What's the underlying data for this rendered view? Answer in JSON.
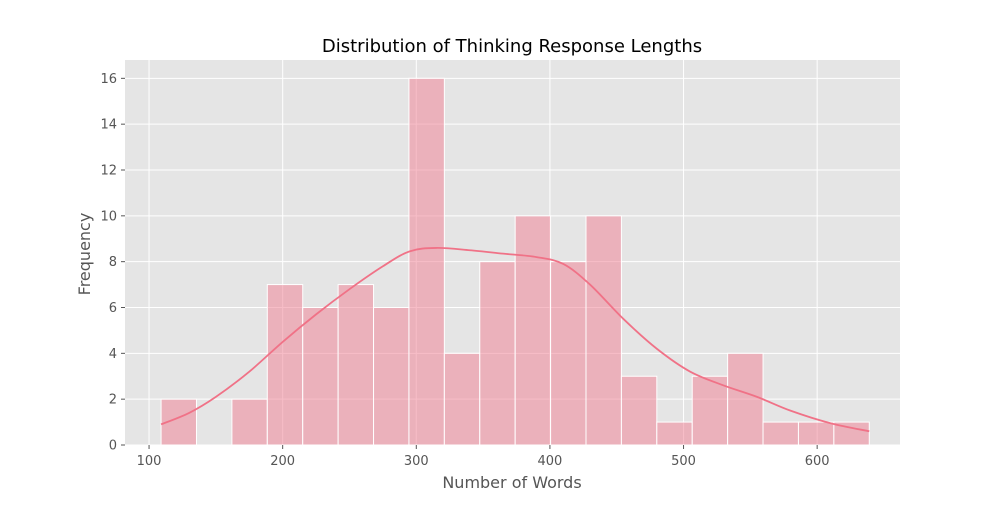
{
  "chart_data": {
    "type": "bar",
    "subtype": "histogram with kde",
    "title": "Distribution of Thinking Response Lengths",
    "xlabel": "Number of Words",
    "ylabel": "Frequency",
    "xlim": [
      82,
      662
    ],
    "ylim": [
      0,
      16.8
    ],
    "x_ticks": [
      100,
      200,
      300,
      400,
      500,
      600
    ],
    "y_ticks": [
      0,
      2,
      4,
      6,
      8,
      10,
      12,
      14,
      16
    ],
    "grid": true,
    "background": "#E5E5E5",
    "bar_color": "#F08799",
    "bar_opacity": 0.55,
    "kde_color": "#F07287",
    "bins": [
      {
        "x0": 109.0,
        "x1": 135.5,
        "count": 2
      },
      {
        "x0": 135.5,
        "x1": 162.0,
        "count": 0
      },
      {
        "x0": 162.0,
        "x1": 188.5,
        "count": 2
      },
      {
        "x0": 188.5,
        "x1": 215.0,
        "count": 7
      },
      {
        "x0": 215.0,
        "x1": 241.5,
        "count": 6
      },
      {
        "x0": 241.5,
        "x1": 268.0,
        "count": 7
      },
      {
        "x0": 268.0,
        "x1": 294.5,
        "count": 6
      },
      {
        "x0": 294.5,
        "x1": 321.0,
        "count": 16
      },
      {
        "x0": 321.0,
        "x1": 347.5,
        "count": 4
      },
      {
        "x0": 347.5,
        "x1": 374.0,
        "count": 8
      },
      {
        "x0": 374.0,
        "x1": 400.5,
        "count": 10
      },
      {
        "x0": 400.5,
        "x1": 427.0,
        "count": 8
      },
      {
        "x0": 427.0,
        "x1": 453.5,
        "count": 10
      },
      {
        "x0": 453.5,
        "x1": 480.0,
        "count": 3
      },
      {
        "x0": 480.0,
        "x1": 506.5,
        "count": 1
      },
      {
        "x0": 506.5,
        "x1": 533.0,
        "count": 3
      },
      {
        "x0": 533.0,
        "x1": 559.5,
        "count": 4
      },
      {
        "x0": 559.5,
        "x1": 586.0,
        "count": 1
      },
      {
        "x0": 586.0,
        "x1": 612.5,
        "count": 1
      },
      {
        "x0": 612.5,
        "x1": 639.0,
        "count": 1
      }
    ],
    "kde": {
      "x": [
        109,
        130,
        150,
        175,
        200,
        225,
        250,
        275,
        295,
        315,
        340,
        365,
        390,
        410,
        430,
        455,
        480,
        505,
        530,
        555,
        580,
        610,
        639
      ],
      "y": [
        0.9,
        1.4,
        2.1,
        3.2,
        4.5,
        5.7,
        6.8,
        7.8,
        8.45,
        8.6,
        8.5,
        8.35,
        8.2,
        7.9,
        7.0,
        5.5,
        4.2,
        3.2,
        2.6,
        2.1,
        1.5,
        0.95,
        0.6
      ]
    }
  }
}
